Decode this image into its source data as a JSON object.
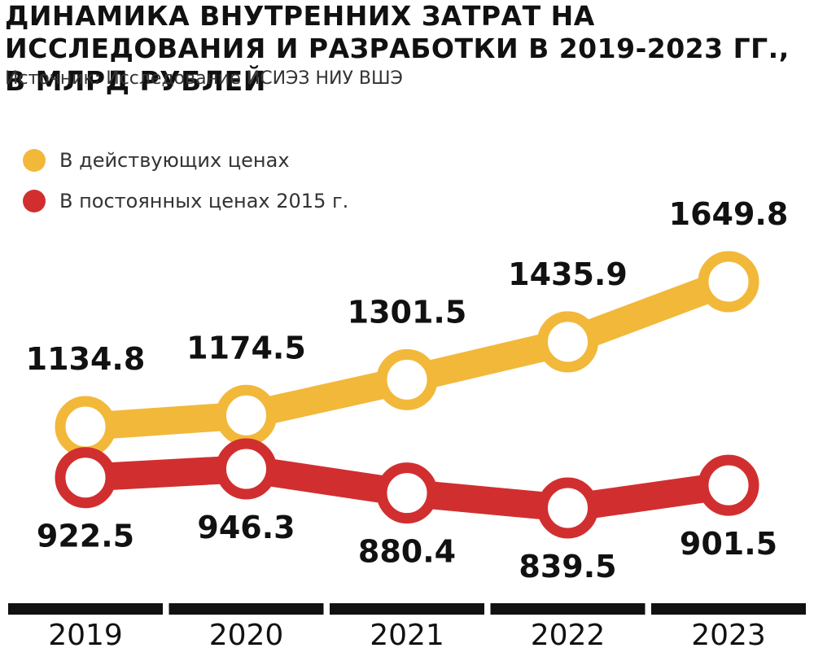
{
  "title": "ДИНАМИКА ВНУТРЕННИХ ЗАТРАТ НА ИССЛЕДОВАНИЯ И РАЗРАБОТКИ В 2019-2023 ГГ., В МЛРД РУБЛЕЙ",
  "source": "Источник: Исследование ИСИЭЗ НИУ ВШЭ",
  "colors": {
    "current": "#f2b83a",
    "constant": "#d12f2f",
    "axis": "#111111"
  },
  "legend": [
    {
      "label": "В действующих ценах",
      "color": "#f2b83a"
    },
    {
      "label": "В постоянных ценах 2015 г.",
      "color": "#d12f2f"
    }
  ],
  "chart_data": {
    "type": "line",
    "title": "ДИНАМИКА ВНУТРЕННИХ ЗАТРАТ НА ИССЛЕДОВАНИЯ И РАЗРАБОТКИ В 2019-2023 ГГ., В МЛРД РУБЛЕЙ",
    "categories": [
      "2019",
      "2020",
      "2021",
      "2022",
      "2023"
    ],
    "series": [
      {
        "name": "В действующих ценах",
        "values": [
          1134.8,
          1174.5,
          1301.5,
          1435.9,
          1649.8
        ],
        "value_labels": [
          "1134.8",
          "1174.5",
          "1301.5",
          "1435.9",
          "1649.8"
        ],
        "color": "#f2b83a"
      },
      {
        "name": "В постоянных ценах 2015 г.",
        "values": [
          922.5,
          946.3,
          880.4,
          839.5,
          901.5
        ],
        "value_labels": [
          "922.5",
          "946.3",
          "880.4",
          "839.5",
          "901.5"
        ],
        "color": "#d12f2f"
      }
    ],
    "xlabel": "",
    "ylabel": "",
    "grid": false,
    "legend_position": "top-left"
  }
}
